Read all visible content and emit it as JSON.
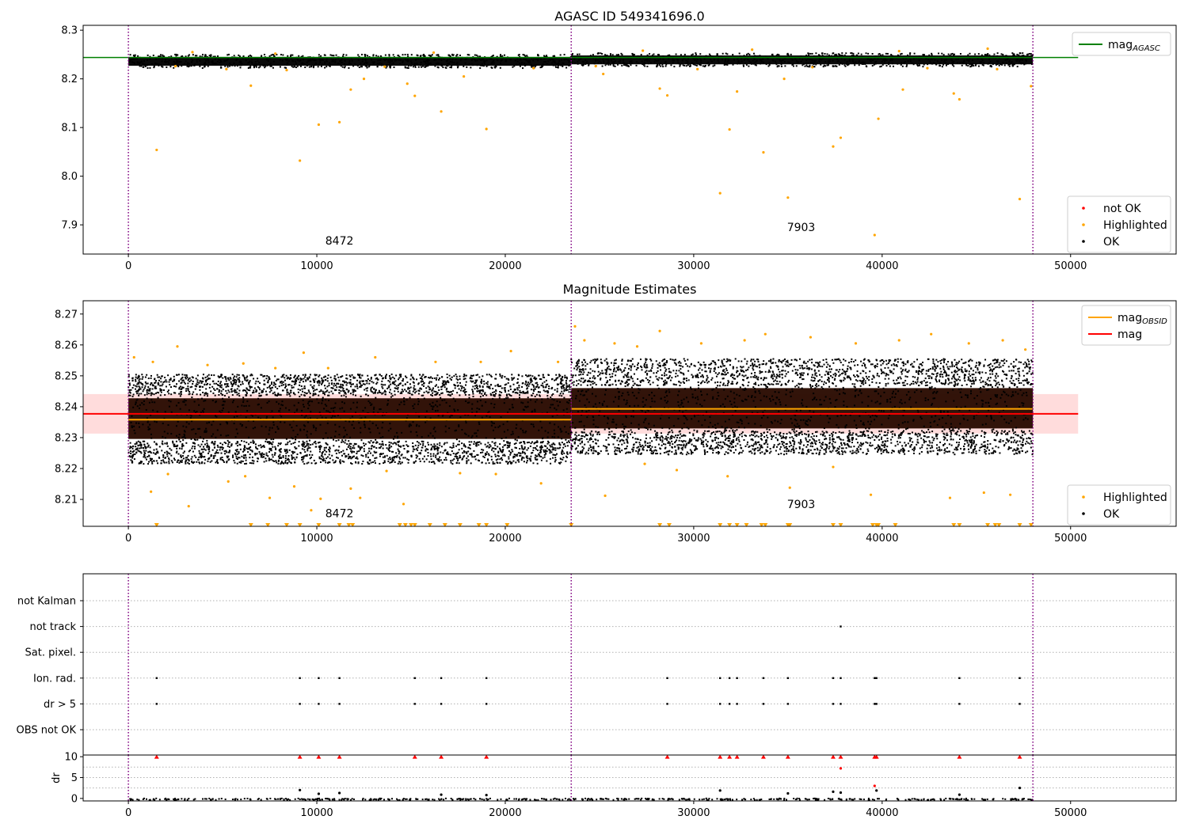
{
  "chart_data": [
    {
      "id": "agasc",
      "type": "scatter",
      "title": "AGASC ID 549341696.0",
      "xlim": [
        -2400,
        55600
      ],
      "ylim": [
        7.84,
        8.31
      ],
      "xticks": [
        0,
        10000,
        20000,
        30000,
        40000,
        50000
      ],
      "yticks": [
        7.9,
        8.0,
        8.1,
        8.2,
        8.3
      ],
      "ytick_labels": [
        "7.9",
        "8.0",
        "8.1",
        "8.2",
        "8.3"
      ],
      "obsid_boundaries": [
        0,
        23500,
        48000
      ],
      "obsids": [
        {
          "label": "8472",
          "x": 11200,
          "y": 7.868
        },
        {
          "label": "7903",
          "x": 35700,
          "y": 7.895
        }
      ],
      "reference_lines": [
        {
          "name": "mag_AGASC",
          "y": 8.244,
          "color": "#008000",
          "x0": -2400,
          "x1": 50400
        }
      ],
      "legends": [
        {
          "position": "top-right",
          "items": [
            {
              "label": "mag",
              "sub": "AGASC",
              "kind": "line",
              "color": "#008000"
            }
          ]
        },
        {
          "position": "bottom-right",
          "items": [
            {
              "label": "not OK",
              "kind": "dot",
              "color": "#ff0000"
            },
            {
              "label": "Highlighted",
              "kind": "dot",
              "color": "#ffa500"
            },
            {
              "label": "OK",
              "kind": "dot",
              "color": "#000000"
            }
          ]
        }
      ],
      "bands": [
        {
          "x0": 0,
          "x1": 23500,
          "y0": 8.222,
          "y1": 8.25,
          "color": "#000000"
        },
        {
          "x0": 23500,
          "x1": 48000,
          "y0": 8.225,
          "y1": 8.253,
          "color": "#000000"
        }
      ],
      "series": [
        {
          "name": "Highlighted",
          "color": "#ffa500",
          "points": [
            [
              1500,
              8.054
            ],
            [
              9100,
              8.032
            ],
            [
              10100,
              8.106
            ],
            [
              11200,
              8.111
            ],
            [
              11800,
              8.178
            ],
            [
              14800,
              8.19
            ],
            [
              15200,
              8.165
            ],
            [
              16600,
              8.133
            ],
            [
              19000,
              8.097
            ],
            [
              6500,
              8.186
            ],
            [
              12500,
              8.2
            ],
            [
              17800,
              8.205
            ],
            [
              28200,
              8.18
            ],
            [
              28600,
              8.166
            ],
            [
              31400,
              7.965
            ],
            [
              31900,
              8.096
            ],
            [
              32300,
              8.174
            ],
            [
              33700,
              8.049
            ],
            [
              35000,
              7.956
            ],
            [
              37400,
              8.061
            ],
            [
              37800,
              8.079
            ],
            [
              39600,
              7.879
            ],
            [
              39800,
              8.118
            ],
            [
              41100,
              8.178
            ],
            [
              43800,
              8.17
            ],
            [
              44100,
              8.158
            ],
            [
              47300,
              7.953
            ],
            [
              47900,
              8.185
            ],
            [
              25200,
              8.21
            ],
            [
              34800,
              8.2
            ],
            [
              2500,
              8.226
            ],
            [
              5200,
              8.22
            ],
            [
              8400,
              8.218
            ],
            [
              13600,
              8.225
            ],
            [
              21500,
              8.222
            ],
            [
              24800,
              8.226
            ],
            [
              30200,
              8.22
            ],
            [
              36300,
              8.224
            ],
            [
              42400,
              8.222
            ],
            [
              46100,
              8.22
            ],
            [
              3400,
              8.255
            ],
            [
              7800,
              8.252
            ],
            [
              16200,
              8.254
            ],
            [
              27300,
              8.258
            ],
            [
              33100,
              8.26
            ],
            [
              40900,
              8.257
            ],
            [
              45600,
              8.262
            ]
          ]
        }
      ]
    },
    {
      "id": "mag_estimates",
      "type": "scatter",
      "title": "Magnitude Estimates",
      "xlim": [
        -2400,
        55600
      ],
      "ylim": [
        8.2013,
        8.2743
      ],
      "xticks": [
        0,
        10000,
        20000,
        30000,
        40000,
        50000
      ],
      "yticks": [
        8.21,
        8.22,
        8.23,
        8.24,
        8.25,
        8.26,
        8.27
      ],
      "ytick_labels": [
        "8.21",
        "8.22",
        "8.23",
        "8.24",
        "8.25",
        "8.26",
        "8.27"
      ],
      "obsid_boundaries": [
        0,
        23500,
        48000
      ],
      "obsids": [
        {
          "label": "8472",
          "x": 11200,
          "y": 8.2055
        },
        {
          "label": "7903",
          "x": 35700,
          "y": 8.2085
        }
      ],
      "mag_band": {
        "y0": 8.2313,
        "y1": 8.2441,
        "color": "#ffdcdc",
        "x0": -2400,
        "x1": 50400
      },
      "reference_lines": [
        {
          "name": "mag",
          "y": 8.2377,
          "color": "#ff0000",
          "x0": -2400,
          "x1": 50400
        },
        {
          "name": "mag_OBSID",
          "y": 8.2358,
          "color": "#ffa500",
          "x0": 0,
          "x1": 23500
        },
        {
          "name": "mag_OBSID",
          "y": 8.2393,
          "color": "#ffa500",
          "x0": 23500,
          "x1": 48000
        }
      ],
      "legends": [
        {
          "position": "top-right",
          "items": [
            {
              "label": "mag",
              "sub": "OBSID",
              "kind": "line",
              "color": "#ffa500"
            },
            {
              "label": "mag",
              "kind": "line",
              "color": "#ff0000"
            }
          ]
        },
        {
          "position": "bottom-right",
          "items": [
            {
              "label": "Highlighted",
              "kind": "dot",
              "color": "#ffa500"
            },
            {
              "label": "OK",
              "kind": "dot",
              "color": "#000000"
            }
          ]
        }
      ],
      "bands": [
        {
          "x0": 0,
          "x1": 23500,
          "y0": 8.2288,
          "y1": 8.2435,
          "color": "#2a0a00"
        },
        {
          "x0": 23500,
          "x1": 48000,
          "y0": 8.2322,
          "y1": 8.2468,
          "color": "#2a0a00"
        },
        {
          "x0": 0,
          "x1": 23500,
          "y0": 8.2215,
          "y1": 8.2288,
          "color": "#000000",
          "density": 0.55
        },
        {
          "x0": 0,
          "x1": 23500,
          "y0": 8.2435,
          "y1": 8.2505,
          "color": "#000000",
          "density": 0.55
        },
        {
          "x0": 23500,
          "x1": 48000,
          "y0": 8.2245,
          "y1": 8.2322,
          "color": "#000000",
          "density": 0.55
        },
        {
          "x0": 23500,
          "x1": 48000,
          "y0": 8.2468,
          "y1": 8.2555,
          "color": "#000000",
          "density": 0.55
        }
      ],
      "series": [
        {
          "name": "Highlighted",
          "color": "#ffa500",
          "points": [
            [
              300,
              8.256
            ],
            [
              2600,
              8.2595
            ],
            [
              1300,
              8.2545
            ],
            [
              4200,
              8.2535
            ],
            [
              6100,
              8.254
            ],
            [
              7800,
              8.2525
            ],
            [
              9300,
              8.2575
            ],
            [
              10600,
              8.2525
            ],
            [
              13100,
              8.256
            ],
            [
              16300,
              8.2545
            ],
            [
              18700,
              8.2545
            ],
            [
              20300,
              8.258
            ],
            [
              22800,
              8.2545
            ],
            [
              24200,
              8.2615
            ],
            [
              25800,
              8.2605
            ],
            [
              27000,
              8.2595
            ],
            [
              28200,
              8.2645
            ],
            [
              30400,
              8.2605
            ],
            [
              32700,
              8.2615
            ],
            [
              33800,
              8.2635
            ],
            [
              36200,
              8.2625
            ],
            [
              38600,
              8.2605
            ],
            [
              40900,
              8.2615
            ],
            [
              42600,
              8.2635
            ],
            [
              44600,
              8.2605
            ],
            [
              46400,
              8.2615
            ],
            [
              47600,
              8.2585
            ],
            [
              23700,
              8.266
            ],
            [
              1200,
              8.2125
            ],
            [
              3200,
              8.2078
            ],
            [
              5300,
              8.2158
            ],
            [
              7500,
              8.2105
            ],
            [
              8800,
              8.2142
            ],
            [
              9700,
              8.2065
            ],
            [
              10200,
              8.2102
            ],
            [
              11800,
              8.2135
            ],
            [
              12300,
              8.2105
            ],
            [
              14600,
              8.2085
            ],
            [
              17600,
              8.2185
            ],
            [
              21900,
              8.2152
            ],
            [
              25300,
              8.2112
            ],
            [
              29100,
              8.2195
            ],
            [
              31800,
              8.2175
            ],
            [
              35100,
              8.2138
            ],
            [
              37400,
              8.2205
            ],
            [
              39400,
              8.2115
            ],
            [
              43600,
              8.2105
            ],
            [
              45400,
              8.2122
            ],
            [
              46800,
              8.2115
            ],
            [
              2100,
              8.2182
            ],
            [
              6200,
              8.2175
            ],
            [
              13700,
              8.2192
            ],
            [
              19500,
              8.2182
            ],
            [
              27400,
              8.2215
            ]
          ]
        },
        {
          "name": "Highlighted (below range)",
          "color": "#ffa500",
          "marker": "triangle-down",
          "y": 8.2013,
          "x": [
            1500,
            6500,
            7400,
            8400,
            9100,
            10100,
            11200,
            11700,
            11900,
            14400,
            14700,
            15000,
            15200,
            16000,
            16800,
            17600,
            18600,
            19000,
            20100,
            23500,
            28200,
            28700,
            31400,
            31900,
            32300,
            32800,
            33600,
            33800,
            35000,
            35100,
            37400,
            37800,
            39500,
            39700,
            39800,
            40700,
            43800,
            44100,
            45600,
            46000,
            46200,
            47300,
            47900
          ]
        }
      ]
    },
    {
      "id": "flags",
      "type": "scatter",
      "title": "",
      "xlim": [
        -2400,
        55600
      ],
      "categories": [
        "not Kalman",
        "not track",
        "Sat. pixel.",
        "Ion. rad.",
        "dr > 5",
        "OBS not OK"
      ],
      "obsid_boundaries": [
        0,
        23500,
        48000
      ],
      "series": [
        {
          "name": "not track",
          "color": "#000000",
          "x": [
            37800
          ]
        },
        {
          "name": "Ion. rad.",
          "color": "#000000",
          "x": [
            1500,
            9100,
            10100,
            11200,
            15200,
            16600,
            19000,
            28600,
            31400,
            31900,
            32300,
            33700,
            35000,
            37400,
            37800,
            39600,
            39700,
            44100,
            47300
          ]
        },
        {
          "name": "dr > 5",
          "color": "#000000",
          "x": [
            1500,
            9100,
            10100,
            11200,
            15200,
            16600,
            19000,
            28600,
            31400,
            31900,
            32300,
            33700,
            35000,
            37400,
            37800,
            39600,
            39700,
            44100,
            47300
          ]
        }
      ]
    },
    {
      "id": "dr",
      "type": "scatter",
      "title": "",
      "ylabel": "dr",
      "xlim": [
        -2400,
        55600
      ],
      "ylim": [
        -0.6,
        10.4
      ],
      "xticks": [
        0,
        10000,
        20000,
        30000,
        40000,
        50000
      ],
      "yticks": [
        0,
        5,
        10
      ],
      "ytick_labels": [
        "0",
        "5",
        "10"
      ],
      "obsid_boundaries": [
        0,
        23500,
        48000
      ],
      "bands": [
        {
          "x0": 0,
          "x1": 48000,
          "y0": -0.2,
          "y1": 0.45,
          "color": "#000000"
        }
      ],
      "series": [
        {
          "name": "above range",
          "color": "#ff0000",
          "marker": "triangle-up",
          "y": 10.1,
          "x": [
            1500,
            9100,
            10100,
            11200,
            15200,
            16600,
            19000,
            28600,
            31400,
            31900,
            32300,
            33700,
            35000,
            37400,
            37800,
            39600,
            39700,
            44100,
            47300
          ]
        },
        {
          "name": "not OK",
          "color": "#ff0000",
          "points": [
            [
              37800,
              7.2
            ],
            [
              39600,
              3.0
            ]
          ]
        },
        {
          "name": "OK",
          "color": "#000000",
          "points": [
            [
              9100,
              2.0
            ],
            [
              10100,
              1.1
            ],
            [
              11200,
              1.3
            ],
            [
              16600,
              0.9
            ],
            [
              31400,
              1.9
            ],
            [
              35000,
              1.2
            ],
            [
              37400,
              1.6
            ],
            [
              37800,
              1.4
            ],
            [
              39700,
              1.9
            ],
            [
              47300,
              2.5
            ],
            [
              19000,
              0.8
            ],
            [
              44100,
              0.9
            ]
          ]
        }
      ]
    }
  ]
}
